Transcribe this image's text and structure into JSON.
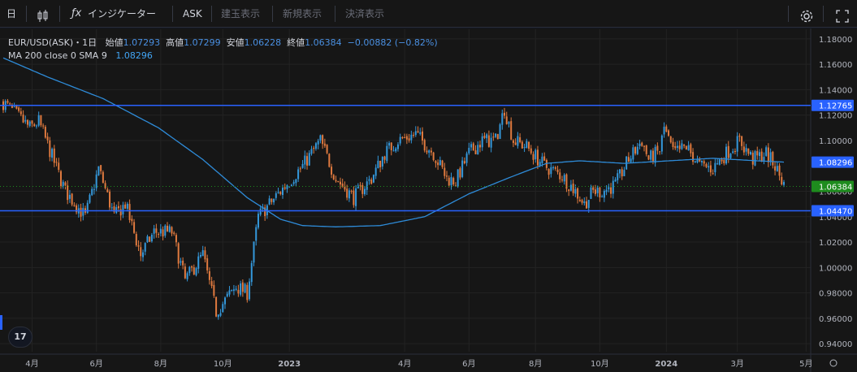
{
  "toolbar": {
    "interval": "日",
    "indicators_label": "インジケーター",
    "price_type": "ASK",
    "btn_positions": "建玉表示",
    "btn_new_orders": "新規表示",
    "btn_settled": "決済表示"
  },
  "legend": {
    "symbol": "EUR/USD(ASK)・1日",
    "open_label": "始値",
    "open": "1.07293",
    "high_label": "高値",
    "high": "1.07299",
    "low_label": "安値",
    "low": "1.06228",
    "close_label": "終値",
    "close": "1.06384",
    "change": "−0.00882 (−0.82%)",
    "ma_label": "MA 200 close 0 SMA 9",
    "ma_value": "1.08296"
  },
  "logo_text": "17",
  "chart_data": {
    "type": "candlestick",
    "y_range": [
      0.9337,
      1.1876
    ],
    "y_ticks": [
      "1.18000",
      "1.16000",
      "1.14000",
      "1.12000",
      "1.10000",
      "1.06000",
      "1.04000",
      "1.02000",
      "1.00000",
      "0.98000",
      "0.96000",
      "0.94000"
    ],
    "y_tick_values": [
      1.18,
      1.16,
      1.14,
      1.12,
      1.1,
      1.06,
      1.04,
      1.02,
      1.0,
      0.98,
      0.96,
      0.94
    ],
    "x_ticks": [
      "4月",
      "6月",
      "8月",
      "10月",
      "2023",
      "4月",
      "6月",
      "8月",
      "10月",
      "2024",
      "3月",
      "5月"
    ],
    "x_tick_index": [
      13,
      42,
      71,
      99,
      129,
      181,
      210,
      240,
      269,
      299,
      331,
      362
    ],
    "price_labels": [
      {
        "text": "1.12765",
        "value": 1.12765,
        "color": "#2962ff"
      },
      {
        "text": "1.08296",
        "value": 1.08296,
        "color": "#2962ff"
      },
      {
        "text": "1.06384",
        "value": 1.06384,
        "color": "#1e8c1e"
      },
      {
        "text": "1.04470",
        "value": 1.0447,
        "color": "#2962ff"
      }
    ],
    "horizontal_lines": [
      1.12765,
      1.0447
    ],
    "current_price_line": 1.06384,
    "anchors": [
      [
        0,
        1.13
      ],
      [
        12,
        1.11
      ],
      [
        16,
        1.115
      ],
      [
        28,
        1.06
      ],
      [
        37,
        1.04
      ],
      [
        43,
        1.078
      ],
      [
        50,
        1.04
      ],
      [
        55,
        1.05
      ],
      [
        62,
        1.01
      ],
      [
        68,
        1.028
      ],
      [
        76,
        1.028
      ],
      [
        82,
        0.99
      ],
      [
        90,
        1.01
      ],
      [
        96,
        0.965
      ],
      [
        105,
        0.985
      ],
      [
        110,
        0.98
      ],
      [
        115,
        1.04
      ],
      [
        125,
        1.06
      ],
      [
        135,
        1.08
      ],
      [
        143,
        1.1
      ],
      [
        150,
        1.07
      ],
      [
        158,
        1.055
      ],
      [
        166,
        1.07
      ],
      [
        172,
        1.09
      ],
      [
        178,
        1.1
      ],
      [
        186,
        1.105
      ],
      [
        194,
        1.09
      ],
      [
        200,
        1.07
      ],
      [
        204,
        1.068
      ],
      [
        210,
        1.09
      ],
      [
        216,
        1.1
      ],
      [
        222,
        1.1
      ],
      [
        226,
        1.125
      ],
      [
        230,
        1.1
      ],
      [
        236,
        1.095
      ],
      [
        244,
        1.08
      ],
      [
        252,
        1.072
      ],
      [
        258,
        1.06
      ],
      [
        262,
        1.05
      ],
      [
        266,
        1.06
      ],
      [
        270,
        1.06
      ],
      [
        276,
        1.065
      ],
      [
        282,
        1.085
      ],
      [
        288,
        1.1
      ],
      [
        291,
        1.085
      ],
      [
        296,
        1.092
      ],
      [
        298,
        1.11
      ],
      [
        302,
        1.09
      ],
      [
        308,
        1.095
      ],
      [
        314,
        1.08
      ],
      [
        320,
        1.078
      ],
      [
        326,
        1.09
      ],
      [
        332,
        1.1
      ],
      [
        338,
        1.085
      ],
      [
        344,
        1.09
      ],
      [
        348,
        1.08
      ],
      [
        352,
        1.065
      ]
    ],
    "ma_anchors": [
      [
        0,
        1.165
      ],
      [
        20,
        1.15
      ],
      [
        45,
        1.133
      ],
      [
        70,
        1.11
      ],
      [
        90,
        1.085
      ],
      [
        110,
        1.055
      ],
      [
        125,
        1.038
      ],
      [
        135,
        1.033
      ],
      [
        150,
        1.032
      ],
      [
        170,
        1.033
      ],
      [
        190,
        1.04
      ],
      [
        210,
        1.058
      ],
      [
        230,
        1.072
      ],
      [
        245,
        1.082
      ],
      [
        260,
        1.084
      ],
      [
        280,
        1.082
      ],
      [
        300,
        1.084
      ],
      [
        320,
        1.086
      ],
      [
        340,
        1.084
      ],
      [
        352,
        1.083
      ]
    ],
    "candle_count": 353,
    "colors": {
      "up": "#3498db",
      "down": "#e07a3f",
      "ma": "#2e8bd8",
      "hline": "#2962ff",
      "current": "#1e8c1e"
    }
  }
}
